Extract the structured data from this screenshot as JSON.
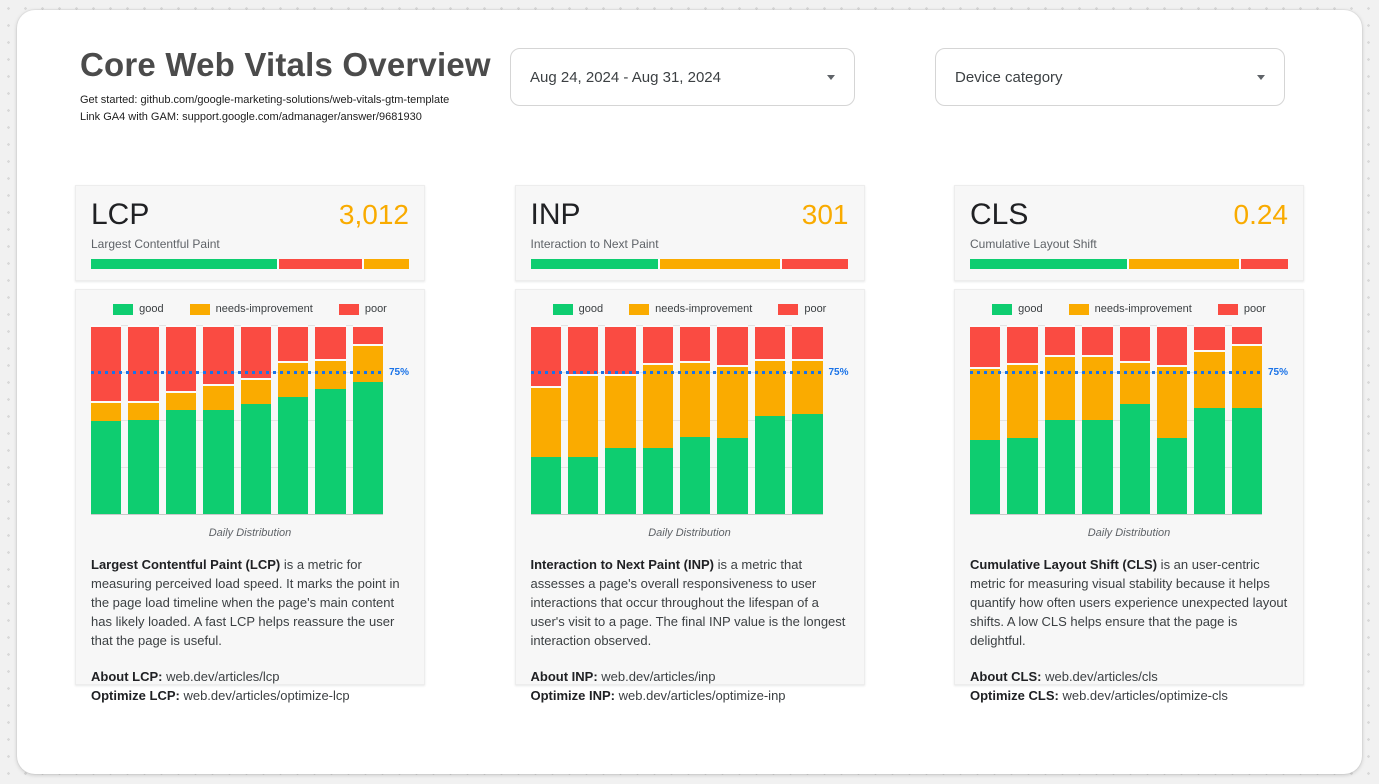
{
  "report": {
    "title": "Core Web Vitals Overview",
    "links": [
      "Get started: github.com/google-marketing-solutions/web-vitals-gtm-template",
      "Link GA4 with GAM: support.google.com/admanager/answer/9681930"
    ]
  },
  "controls": {
    "date_range": {
      "value": "Aug 24, 2024 - Aug 31, 2024"
    },
    "device_category": {
      "value": "Device category"
    }
  },
  "legend": {
    "good": "good",
    "needs_improvement": "needs-improvement",
    "poor": "poor"
  },
  "colors": {
    "good": "#0ecd70",
    "needs_improvement": "#faab00",
    "poor": "#fa4b42",
    "metric_value": "#f9ab00",
    "threshold_line": "#1a73e8"
  },
  "threshold_label": "75%",
  "axis_label": "Daily Distribution",
  "chart_data": [
    {
      "type": "bar",
      "stacked": true,
      "units": "percent",
      "title": "LCP Daily Distribution",
      "xlabel": "Daily Distribution",
      "ylim": [
        0,
        100
      ],
      "bars": 8,
      "threshold": {
        "value": 75,
        "label": "75%"
      },
      "legend_position": "top",
      "series": [
        {
          "name": "good",
          "color": "#0ecd70",
          "values": [
            49,
            50,
            55,
            55,
            58,
            62,
            66,
            70
          ]
        },
        {
          "name": "needs-improvement",
          "color": "#faab00",
          "values": [
            11,
            10,
            10,
            14,
            14,
            19,
            16,
            20
          ]
        },
        {
          "name": "poor",
          "color": "#fa4b42",
          "values": [
            40,
            40,
            35,
            31,
            28,
            19,
            18,
            10
          ]
        }
      ]
    },
    {
      "type": "bar",
      "stacked": true,
      "units": "percent",
      "title": "INP Daily Distribution",
      "xlabel": "Daily Distribution",
      "ylim": [
        0,
        100
      ],
      "bars": 8,
      "threshold": {
        "value": 75,
        "label": "75%"
      },
      "legend_position": "top",
      "series": [
        {
          "name": "good",
          "color": "#0ecd70",
          "values": [
            30,
            30,
            35,
            35,
            41,
            40,
            52,
            53
          ]
        },
        {
          "name": "needs-improvement",
          "color": "#faab00",
          "values": [
            38,
            44,
            39,
            45,
            40,
            39,
            30,
            29
          ]
        },
        {
          "name": "poor",
          "color": "#fa4b42",
          "values": [
            32,
            26,
            26,
            20,
            19,
            21,
            18,
            18
          ]
        }
      ]
    },
    {
      "type": "bar",
      "stacked": true,
      "units": "percent",
      "title": "CLS Daily Distribution",
      "xlabel": "Daily Distribution",
      "ylim": [
        0,
        100
      ],
      "bars": 8,
      "threshold": {
        "value": 75,
        "label": "75%"
      },
      "legend_position": "top",
      "series": [
        {
          "name": "good",
          "color": "#0ecd70",
          "values": [
            39,
            40,
            50,
            50,
            58,
            40,
            56,
            56
          ]
        },
        {
          "name": "needs-improvement",
          "color": "#faab00",
          "values": [
            39,
            40,
            34,
            34,
            23,
            39,
            31,
            34
          ]
        },
        {
          "name": "poor",
          "color": "#fa4b42",
          "values": [
            22,
            20,
            16,
            16,
            19,
            21,
            13,
            10
          ]
        }
      ]
    }
  ],
  "cards": [
    {
      "metric": "LCP",
      "value": "3,012",
      "subtitle": "Largest Contentful Paint",
      "chart_index": 0,
      "gauge": [
        {
          "status": "good",
          "pct": 58.5
        },
        {
          "status": "poor",
          "pct": 26.7
        },
        {
          "status": "needs_improvement",
          "pct": 14.8
        }
      ],
      "description_lead": "Largest Contentful Paint (LCP)",
      "description_rest": " is a metric for measuring perceived load speed. It marks the point in the page load timeline when the page's main content has likely loaded. A fast LCP helps reassure the user that the page is useful.",
      "about_label": "About LCP:",
      "about_link": " web.dev/articles/lcp",
      "optimize_label": "Optimize LCP:",
      "optimize_link": " web.dev/articles/optimize-lcp"
    },
    {
      "metric": "INP",
      "value": "301",
      "subtitle": "Interaction to Next Paint",
      "chart_index": 1,
      "gauge": [
        {
          "status": "good",
          "pct": 40.2
        },
        {
          "status": "needs_improvement",
          "pct": 38.3
        },
        {
          "status": "poor",
          "pct": 21.5
        }
      ],
      "description_lead": "Interaction to Next Paint (INP)",
      "description_rest": " is a metric that assesses a page's overall responsiveness to user interactions that occur throughout the lifespan of a user's visit to a page. The final INP value is the longest interaction observed.",
      "about_label": "About INP:",
      "about_link": " web.dev/articles/inp",
      "optimize_label": "Optimize INP:",
      "optimize_link": " web.dev/articles/optimize-inp"
    },
    {
      "metric": "CLS",
      "value": "0.24",
      "subtitle": "Cumulative Layout Shift",
      "chart_index": 2,
      "gauge": [
        {
          "status": "good",
          "pct": 49.5
        },
        {
          "status": "needs_improvement",
          "pct": 35.1
        },
        {
          "status": "poor",
          "pct": 15.4
        }
      ],
      "description_lead": "Cumulative Layout Shift (CLS)",
      "description_rest": " is an user-centric metric for measuring visual stability because it helps quantify how often users experience unexpected layout shifts. A low CLS helps ensure that the page is delightful.",
      "about_label": "About CLS:",
      "about_link": " web.dev/articles/cls",
      "optimize_label": "Optimize CLS:",
      "optimize_link": " web.dev/articles/optimize-cls"
    }
  ]
}
